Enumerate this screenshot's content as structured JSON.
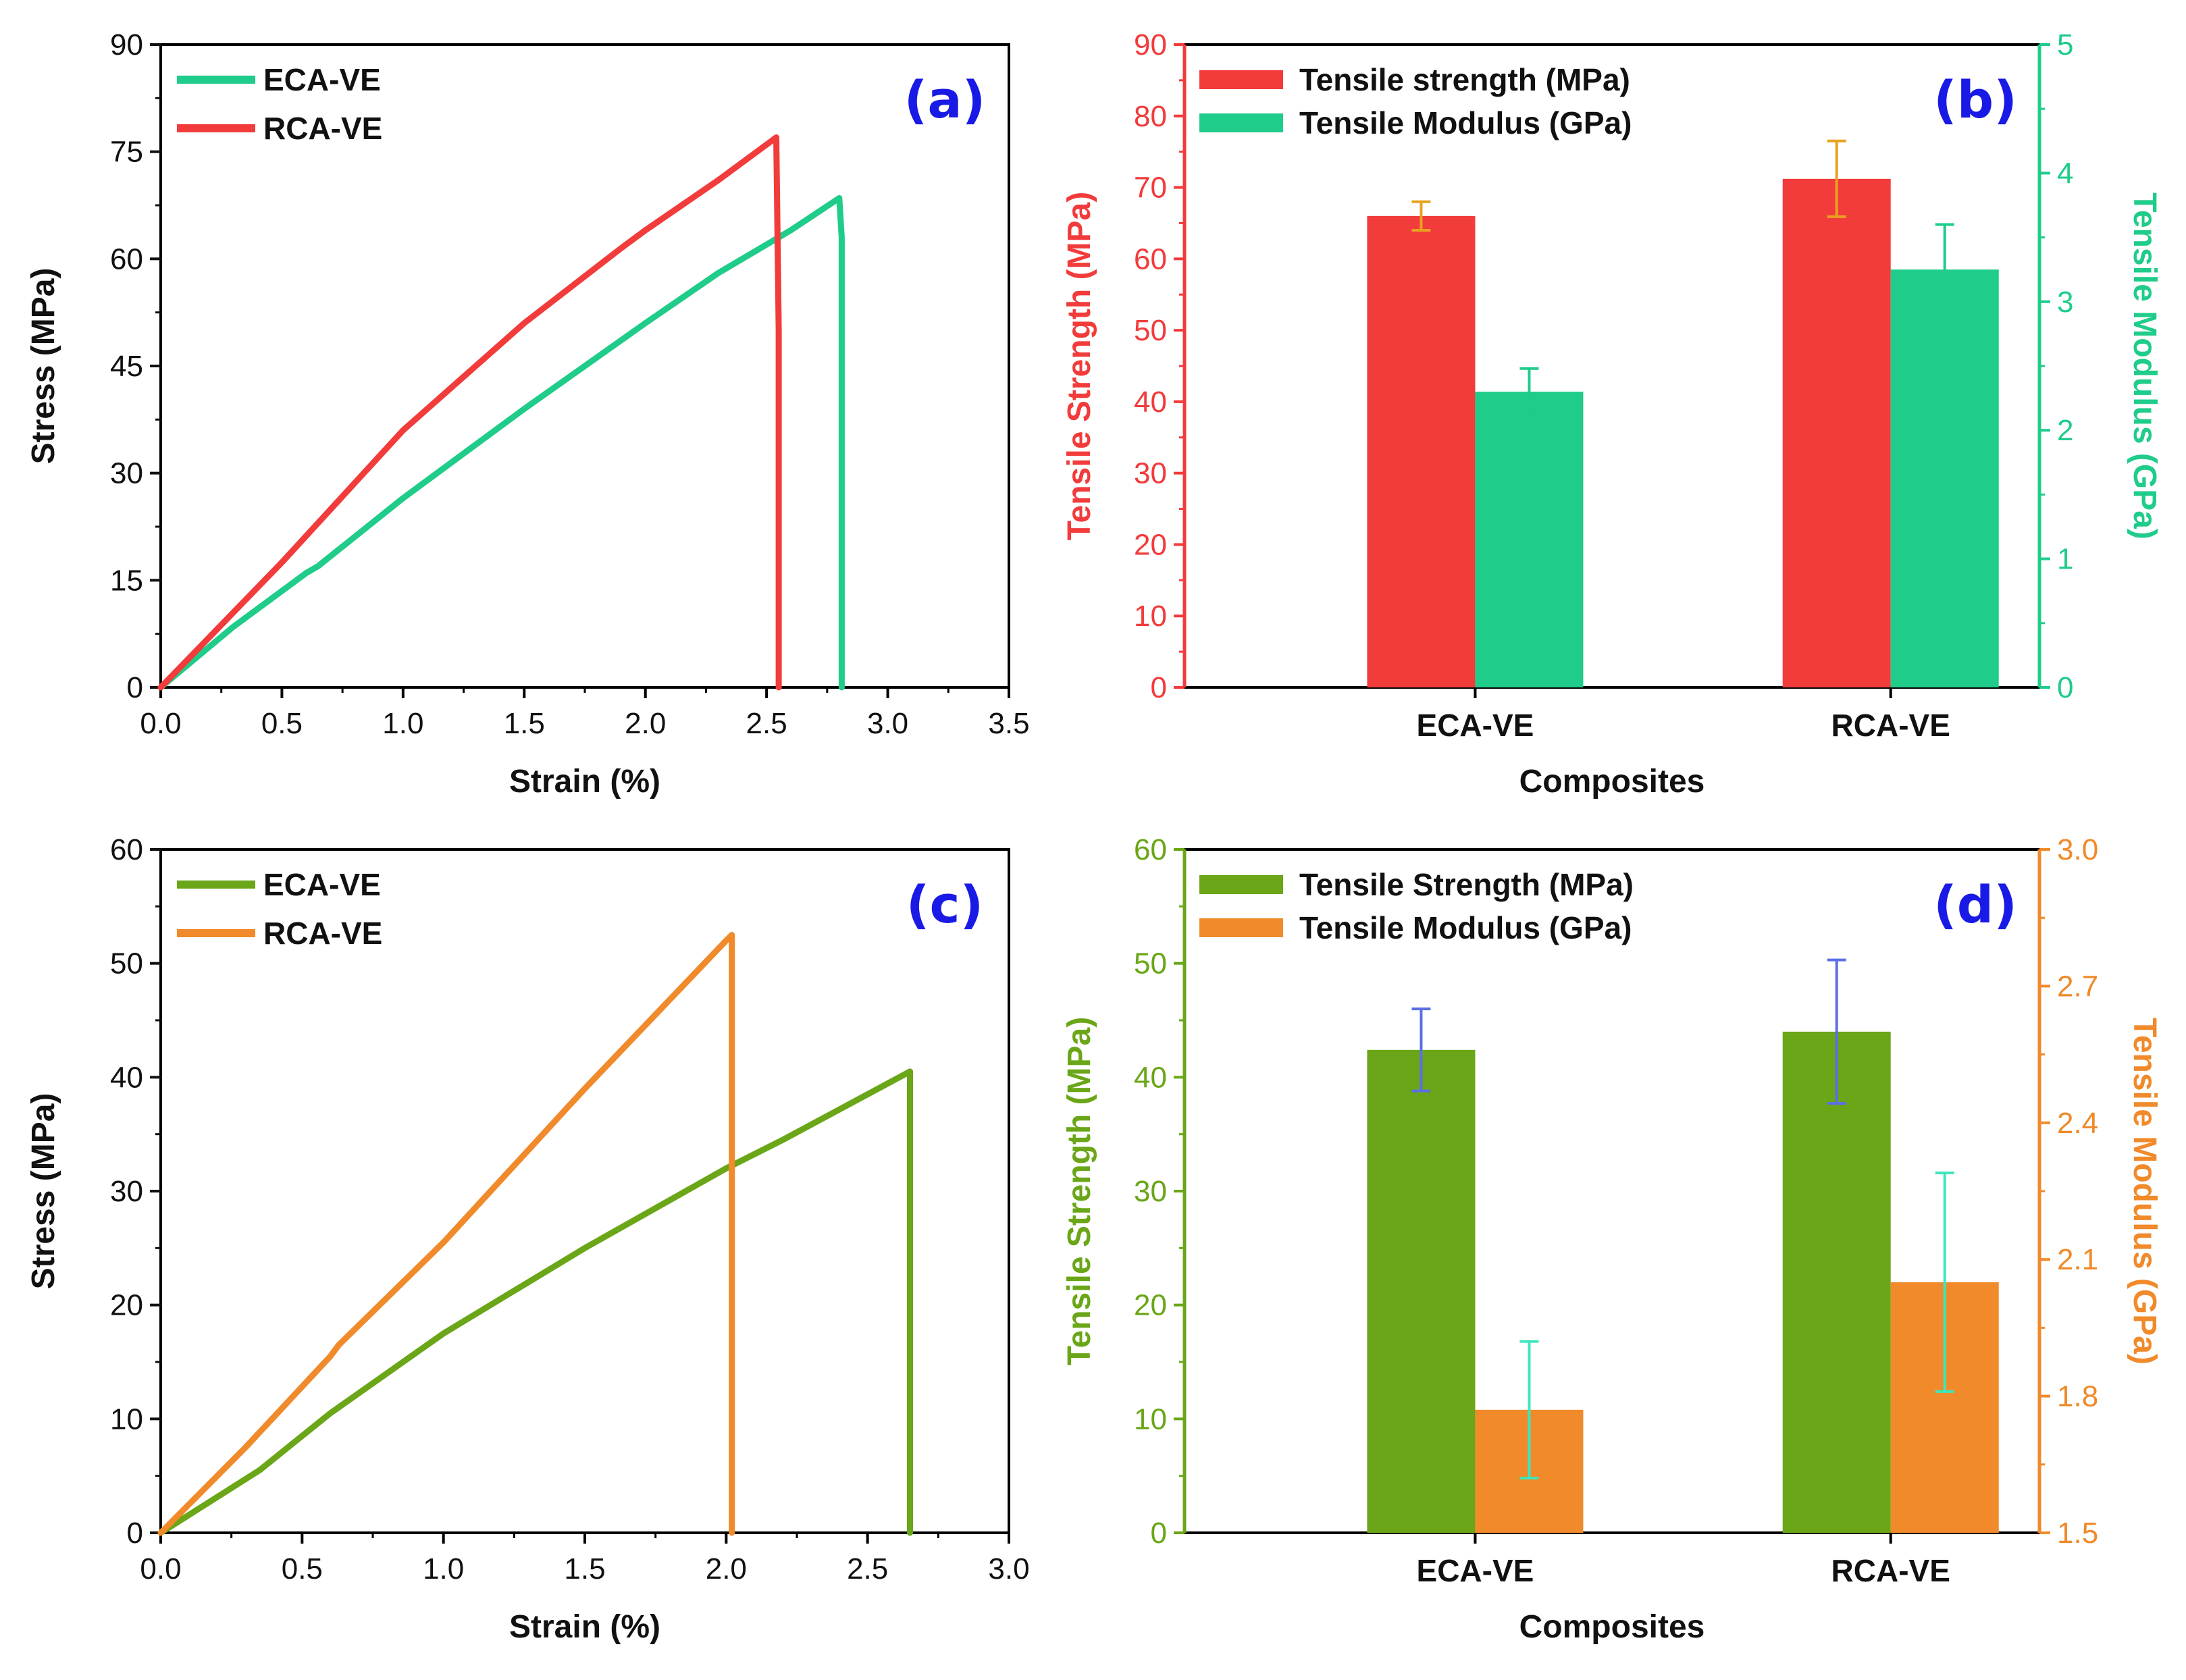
{
  "colors": {
    "eca_a": "#1fcc8a",
    "rca_a": "#f23b3b",
    "strength_b": "#f23b3b",
    "modulus_b": "#1fcc8a",
    "err_b_strength": "#e8a21f",
    "eca_c": "#6aa617",
    "rca_c": "#f08a2a",
    "strength_d": "#6aa617",
    "modulus_d": "#f08a2a",
    "err_d_strength": "#5a6fe6",
    "err_d_modulus": "#3ee6bc",
    "panel_label": "#1a1ae6",
    "axis": "#000000"
  },
  "chart_data": [
    {
      "id": "a",
      "type": "line",
      "panel_label": "(a)",
      "xlabel": "Strain (%)",
      "ylabel": "Stress (MPa)",
      "xlim": [
        0,
        3.5
      ],
      "ylim": [
        0,
        90
      ],
      "xticks": [
        "0.0",
        "0.5",
        "1.0",
        "1.5",
        "2.0",
        "2.5",
        "3.0",
        "3.5"
      ],
      "yticks": [
        "0",
        "15",
        "30",
        "45",
        "60",
        "75",
        "90"
      ],
      "legend": [
        "ECA-VE",
        "RCA-VE"
      ],
      "series": [
        {
          "name": "ECA-VE",
          "x": [
            0.0,
            0.3,
            0.6,
            0.65,
            1.0,
            1.5,
            2.0,
            2.3,
            2.6,
            2.8,
            2.81,
            2.81
          ],
          "y": [
            0,
            8.5,
            16,
            17,
            26.5,
            39,
            51,
            58,
            64,
            68.5,
            63,
            0
          ]
        },
        {
          "name": "RCA-VE",
          "x": [
            0.0,
            0.5,
            1.0,
            1.5,
            1.9,
            2.0,
            2.3,
            2.54,
            2.55,
            2.55
          ],
          "y": [
            0,
            17.5,
            36,
            51,
            61.5,
            64,
            71,
            77,
            50,
            0
          ]
        }
      ]
    },
    {
      "id": "b",
      "type": "bar",
      "panel_label": "(b)",
      "xlabel": "Composites",
      "ylabel": "Tensile Strength (MPa)",
      "ylabel_right": "Tensile Modulus (GPa)",
      "categories": [
        "ECA-VE",
        "RCA-VE"
      ],
      "ylim": [
        0,
        90
      ],
      "ylim_right": [
        0,
        5
      ],
      "yticks": [
        "0",
        "10",
        "20",
        "30",
        "40",
        "50",
        "60",
        "70",
        "80",
        "90"
      ],
      "yticks_right": [
        "0",
        "1",
        "2",
        "3",
        "4",
        "5"
      ],
      "legend": [
        "Tensile strength (MPa)",
        "Tensile Modulus (GPa)"
      ],
      "series": [
        {
          "name": "Tensile strength (MPa)",
          "axis": "left",
          "values": [
            66,
            71.2
          ],
          "errors": [
            2,
            5.3
          ]
        },
        {
          "name": "Tensile Modulus (GPa)",
          "axis": "right",
          "values": [
            2.3,
            3.25
          ],
          "errors": [
            0.18,
            0.35
          ]
        }
      ]
    },
    {
      "id": "c",
      "type": "line",
      "panel_label": "(c)",
      "xlabel": "Strain (%)",
      "ylabel": "Stress (MPa)",
      "xlim": [
        0,
        3.0
      ],
      "ylim": [
        0,
        60
      ],
      "xticks": [
        "0.0",
        "0.5",
        "1.0",
        "1.5",
        "2.0",
        "2.5",
        "3.0"
      ],
      "yticks": [
        "0",
        "10",
        "20",
        "30",
        "40",
        "50",
        "60"
      ],
      "legend": [
        "ECA-VE",
        "RCA-VE"
      ],
      "series": [
        {
          "name": "ECA-VE",
          "x": [
            0.0,
            0.35,
            0.6,
            1.0,
            1.5,
            2.0,
            2.2,
            2.5,
            2.65,
            2.65
          ],
          "y": [
            0,
            5.5,
            10.5,
            17.5,
            25,
            32,
            34.5,
            38.5,
            40.5,
            0
          ]
        },
        {
          "name": "RCA-VE",
          "x": [
            0.0,
            0.3,
            0.6,
            0.63,
            1.0,
            1.5,
            2.0,
            2.02,
            2.02
          ],
          "y": [
            0,
            7.5,
            15.5,
            16.5,
            25.5,
            39,
            52,
            52.5,
            0
          ]
        }
      ]
    },
    {
      "id": "d",
      "type": "bar",
      "panel_label": "(d)",
      "xlabel": "Composites",
      "ylabel": "Tensile Strength (MPa)",
      "ylabel_right": "Tensile Modulus (GPa)",
      "categories": [
        "ECA-VE",
        "RCA-VE"
      ],
      "ylim": [
        0,
        60
      ],
      "ylim_right": [
        1.5,
        3.0
      ],
      "yticks": [
        "0",
        "10",
        "20",
        "30",
        "40",
        "50",
        "60"
      ],
      "yticks_right": [
        "1.5",
        "1.8",
        "2.1",
        "2.4",
        "2.7",
        "3.0"
      ],
      "legend": [
        "Tensile Strength (MPa)",
        "Tensile Modulus (GPa)"
      ],
      "series": [
        {
          "name": "Tensile Strength (MPa)",
          "axis": "left",
          "values": [
            42.4,
            44.0
          ],
          "errors": [
            3.6,
            6.3
          ]
        },
        {
          "name": "Tensile Modulus (GPa)",
          "axis": "right",
          "values": [
            1.77,
            2.05
          ],
          "errors": [
            0.15,
            0.24
          ]
        }
      ]
    }
  ]
}
